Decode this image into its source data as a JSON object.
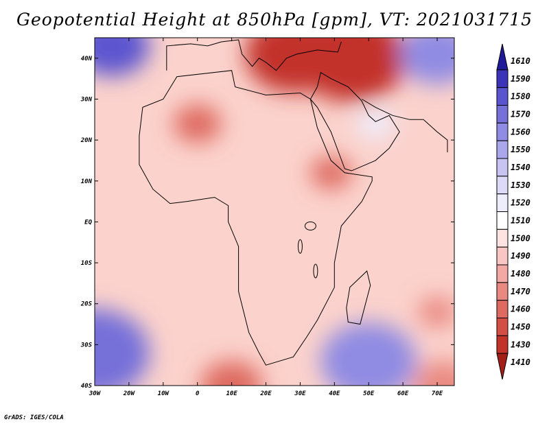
{
  "title": "Geopotential Height at 850hPa [gpm], VT: 2021031715",
  "footer": "GrADS: IGES/COLA",
  "map": {
    "region": "Africa",
    "lon_range": [
      -30,
      75
    ],
    "lat_range": [
      -40,
      45
    ],
    "x_ticks": [
      {
        "lon": -30,
        "label": "30W"
      },
      {
        "lon": -20,
        "label": "20W"
      },
      {
        "lon": -10,
        "label": "10W"
      },
      {
        "lon": 0,
        "label": "0"
      },
      {
        "lon": 10,
        "label": "10E"
      },
      {
        "lon": 20,
        "label": "20E"
      },
      {
        "lon": 30,
        "label": "30E"
      },
      {
        "lon": 40,
        "label": "40E"
      },
      {
        "lon": 50,
        "label": "50E"
      },
      {
        "lon": 60,
        "label": "60E"
      },
      {
        "lon": 70,
        "label": "70E"
      }
    ],
    "y_ticks": [
      {
        "lat": 40,
        "label": "40N"
      },
      {
        "lat": 30,
        "label": "30N"
      },
      {
        "lat": 20,
        "label": "20N"
      },
      {
        "lat": 10,
        "label": "10N"
      },
      {
        "lat": 0,
        "label": "EQ"
      },
      {
        "lat": -10,
        "label": "10S"
      },
      {
        "lat": -20,
        "label": "20S"
      },
      {
        "lat": -30,
        "label": "30S"
      },
      {
        "lat": -40,
        "label": "40S"
      }
    ],
    "field_features": [
      {
        "lon": 28,
        "lat": 41,
        "value": 1430
      },
      {
        "lon": 45,
        "lat": 40,
        "value": 1440
      },
      {
        "lon": 0,
        "lat": 24,
        "value": 1460
      },
      {
        "lon": 39,
        "lat": 12,
        "value": 1460
      },
      {
        "lon": 70,
        "lat": -22,
        "value": 1470
      },
      {
        "lon": 10,
        "lat": -40,
        "value": 1460
      },
      {
        "lon": 72,
        "lat": -40,
        "value": 1470
      },
      {
        "lon": -30,
        "lat": -32,
        "value": 1570
      },
      {
        "lon": 50,
        "lat": -34,
        "value": 1560
      },
      {
        "lon": -25,
        "lat": 43,
        "value": 1580
      },
      {
        "lon": 70,
        "lat": 41,
        "value": 1560
      },
      {
        "lon": 52,
        "lat": 24,
        "value": 1525
      }
    ]
  },
  "colorbar": {
    "levels": [
      "1610",
      "1590",
      "1580",
      "1570",
      "1560",
      "1550",
      "1540",
      "1530",
      "1520",
      "1510",
      "1500",
      "1490",
      "1480",
      "1470",
      "1460",
      "1450",
      "1430",
      "1410"
    ],
    "colors": [
      "#1f1a9a",
      "#3b33b8",
      "#5b54cf",
      "#7670d9",
      "#908be3",
      "#aba7ec",
      "#c7c4f4",
      "#dcdaf8",
      "#eeedfc",
      "#ffffff",
      "#fde3e1",
      "#f9c7c3",
      "#f2a9a3",
      "#e98a82",
      "#de6b61",
      "#d34e44",
      "#c2332a",
      "#a41e18"
    ]
  }
}
